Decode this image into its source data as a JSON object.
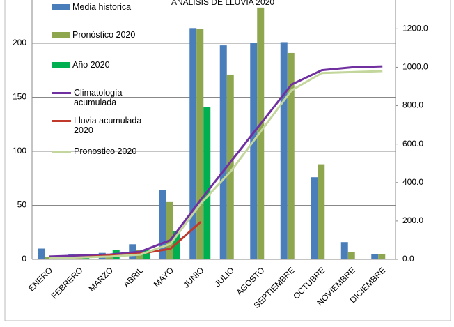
{
  "chart_data": {
    "type": "combo",
    "title": "ANALISIS DE LLUVIA 2020",
    "categories": [
      "ENERO",
      "FEBRERO",
      "MARZO",
      "ABRIL",
      "MAYO",
      "JUNIO",
      "JULIO",
      "AGOSTO",
      "SEPTIEMBRE",
      "OCTUBRE",
      "NOVIEMBRE",
      "DICIEMBRE"
    ],
    "series": [
      {
        "name": "Media historica",
        "kind": "bar",
        "color": "#4a7ebb",
        "values": [
          10,
          5,
          6,
          14,
          64,
          214,
          198,
          200,
          201,
          76,
          16,
          5
        ]
      },
      {
        "name": "Pronóstico 2020",
        "kind": "bar",
        "color": "#8ea64e",
        "values": [
          2,
          5,
          5,
          9,
          53,
          213,
          171,
          233,
          191,
          88,
          7,
          5
        ]
      },
      {
        "name": "Año 2020",
        "kind": "bar",
        "color": "#00b050",
        "values": [
          1,
          5,
          9,
          9,
          26,
          141,
          null,
          null,
          null,
          null,
          null,
          null
        ]
      },
      {
        "name": "Climatología acumulada",
        "kind": "line",
        "axis": "y2",
        "color": "#7030a0",
        "values": [
          15,
          20,
          25,
          40,
          100,
          310,
          510,
          710,
          910,
          985,
          1000,
          1005
        ]
      },
      {
        "name": "Lluvia acumulada 2020",
        "kind": "line",
        "axis": "y2",
        "color": "#c0392b",
        "values": [
          5,
          10,
          20,
          30,
          55,
          195,
          null,
          null,
          null,
          null,
          null,
          null
        ]
      },
      {
        "name": "Pronostico 2020",
        "kind": "line",
        "axis": "y2",
        "color": "#c3d69b",
        "values": [
          5,
          10,
          15,
          25,
          80,
          290,
          460,
          670,
          880,
          970,
          975,
          980
        ]
      }
    ],
    "ylim": [
      0,
      240
    ],
    "yticks": [
      0,
      50,
      100,
      150,
      200
    ],
    "y2lim": [
      0,
      1350
    ],
    "y2ticks": [
      {
        "value": 0,
        "label": "0.0"
      },
      {
        "value": 200,
        "label": "200.0"
      },
      {
        "value": 400,
        "label": "400.0"
      },
      {
        "value": 600,
        "label": "600.0"
      },
      {
        "value": 800,
        "label": "800.0"
      },
      {
        "value": 1000,
        "label": "1000.0"
      },
      {
        "value": 1200,
        "label": "1200.0"
      }
    ],
    "grid": true
  }
}
